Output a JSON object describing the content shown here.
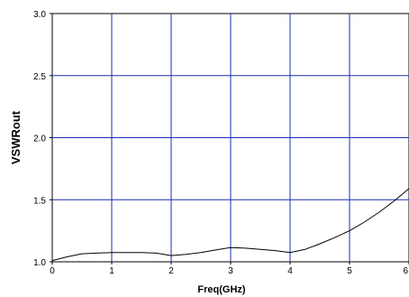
{
  "chart_data": {
    "type": "line",
    "title": "",
    "xlabel": "Freq(GHz)",
    "ylabel": "VSWRout",
    "xlim": [
      0,
      6
    ],
    "ylim": [
      1.0,
      3.0
    ],
    "x_ticks": [
      0,
      1,
      2,
      3,
      4,
      5,
      6
    ],
    "x_tick_labels": [
      "0",
      "1",
      "2",
      "3",
      "4",
      "5",
      "6"
    ],
    "y_ticks": [
      1.0,
      1.5,
      2.0,
      2.5,
      3.0
    ],
    "y_tick_labels": [
      "1.0",
      "1.5",
      "2.0",
      "2.5",
      "3.0"
    ],
    "grid": true,
    "grid_color": "#1a2fb0",
    "line_color": "#000000",
    "series": [
      {
        "x": [
          0,
          0.25,
          0.5,
          0.75,
          1.0,
          1.25,
          1.5,
          1.75,
          2.0,
          2.25,
          2.5,
          2.75,
          3.0,
          3.25,
          3.5,
          3.75,
          4.0,
          4.25,
          4.5,
          4.75,
          5.0,
          5.25,
          5.5,
          5.75,
          6.0
        ],
        "values": [
          1.01,
          1.04,
          1.065,
          1.07,
          1.075,
          1.075,
          1.075,
          1.07,
          1.05,
          1.06,
          1.075,
          1.095,
          1.115,
          1.11,
          1.1,
          1.09,
          1.075,
          1.1,
          1.145,
          1.195,
          1.25,
          1.32,
          1.4,
          1.49,
          1.59
        ]
      }
    ]
  }
}
